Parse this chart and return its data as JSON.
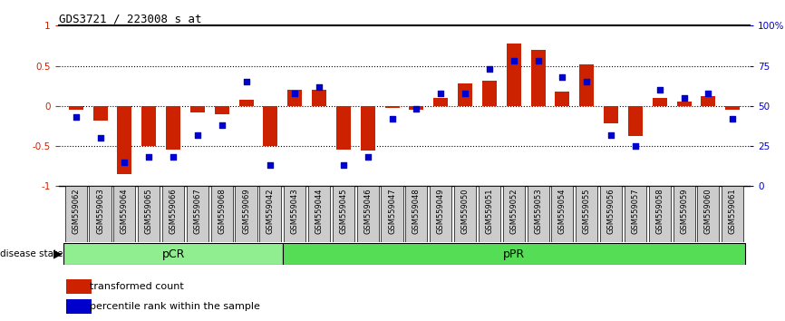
{
  "title": "GDS3721 / 223008_s_at",
  "samples": [
    "GSM559062",
    "GSM559063",
    "GSM559064",
    "GSM559065",
    "GSM559066",
    "GSM559067",
    "GSM559068",
    "GSM559069",
    "GSM559042",
    "GSM559043",
    "GSM559044",
    "GSM559045",
    "GSM559046",
    "GSM559047",
    "GSM559048",
    "GSM559049",
    "GSM559050",
    "GSM559051",
    "GSM559052",
    "GSM559053",
    "GSM559054",
    "GSM559055",
    "GSM559056",
    "GSM559057",
    "GSM559058",
    "GSM559059",
    "GSM559060",
    "GSM559061"
  ],
  "bar_values": [
    -0.05,
    -0.18,
    -0.85,
    -0.5,
    -0.55,
    -0.08,
    -0.1,
    0.08,
    -0.5,
    0.2,
    0.2,
    -0.55,
    -0.56,
    -0.03,
    -0.05,
    0.1,
    0.28,
    0.32,
    0.78,
    0.7,
    0.18,
    0.52,
    -0.22,
    -0.38,
    0.1,
    0.05,
    0.12,
    -0.05
  ],
  "blue_values": [
    43,
    30,
    15,
    18,
    18,
    32,
    38,
    65,
    13,
    58,
    62,
    13,
    18,
    42,
    48,
    58,
    58,
    73,
    78,
    78,
    68,
    65,
    32,
    25,
    60,
    55,
    58,
    42
  ],
  "pCR_count": 9,
  "pPR_count": 19,
  "bar_color": "#CC2200",
  "blue_color": "#0000CC",
  "pCR_color": "#90EE90",
  "pPR_color": "#55DD55",
  "xtick_bg": "#CCCCCC",
  "ylim": [
    -1,
    1
  ],
  "right_ylim": [
    0,
    100
  ],
  "right_yticks": [
    0,
    25,
    50,
    75,
    100
  ],
  "right_yticklabels": [
    "0",
    "25",
    "50",
    "75",
    "100%"
  ],
  "left_yticks": [
    -1,
    -0.5,
    0,
    0.5,
    1
  ],
  "left_yticklabels": [
    "-1",
    "-0.5",
    "0",
    "0.5",
    "1"
  ],
  "dotted_lines": [
    -0.5,
    0,
    0.5
  ],
  "fig_width": 8.66,
  "fig_height": 3.54
}
